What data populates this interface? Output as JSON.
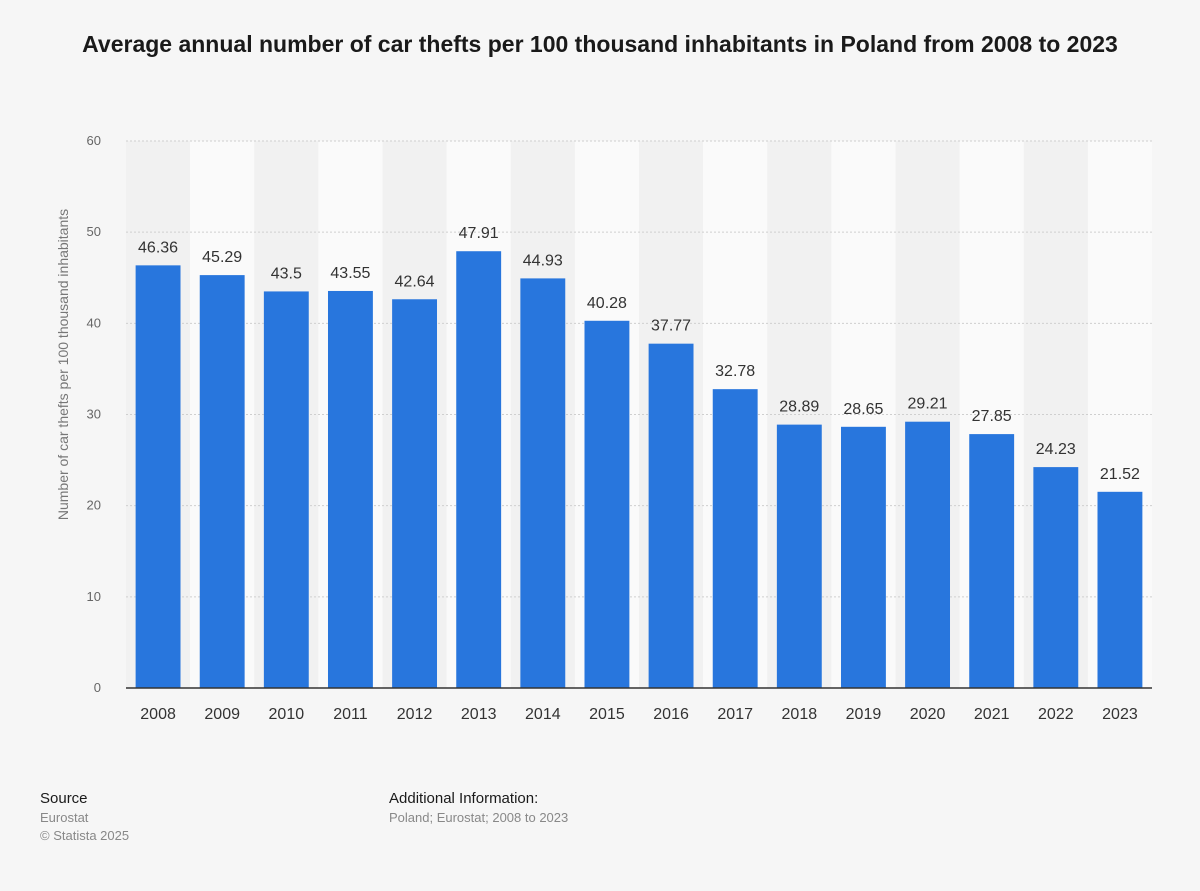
{
  "chart_data": {
    "type": "bar",
    "title": "Average annual number of car thefts per 100 thousand inhabitants in Poland from 2008 to 2023",
    "xlabel": "",
    "ylabel": "Number of car thefts per 100 thousand inhabitants",
    "ylim": [
      0,
      60
    ],
    "yticks": [
      0,
      10,
      20,
      30,
      40,
      50,
      60
    ],
    "grid": true,
    "categories": [
      "2008",
      "2009",
      "2010",
      "2011",
      "2012",
      "2013",
      "2014",
      "2015",
      "2016",
      "2017",
      "2018",
      "2019",
      "2020",
      "2021",
      "2022",
      "2023"
    ],
    "values": [
      46.36,
      45.29,
      43.5,
      43.55,
      42.64,
      47.91,
      44.93,
      40.28,
      37.77,
      32.78,
      28.89,
      28.65,
      29.21,
      27.85,
      24.23,
      21.52
    ],
    "value_labels": [
      "46.36",
      "45.29",
      "43.5",
      "43.55",
      "42.64",
      "47.91",
      "44.93",
      "40.28",
      "37.77",
      "32.78",
      "28.89",
      "28.65",
      "29.21",
      "27.85",
      "24.23",
      "21.52"
    ],
    "bar_color": "#2876dd"
  },
  "footer": {
    "source_heading": "Source",
    "source_name": "Eurostat",
    "copyright": "© Statista 2025",
    "additional_heading": "Additional Information:",
    "additional_text": "Poland; Eurostat; 2008 to 2023"
  }
}
